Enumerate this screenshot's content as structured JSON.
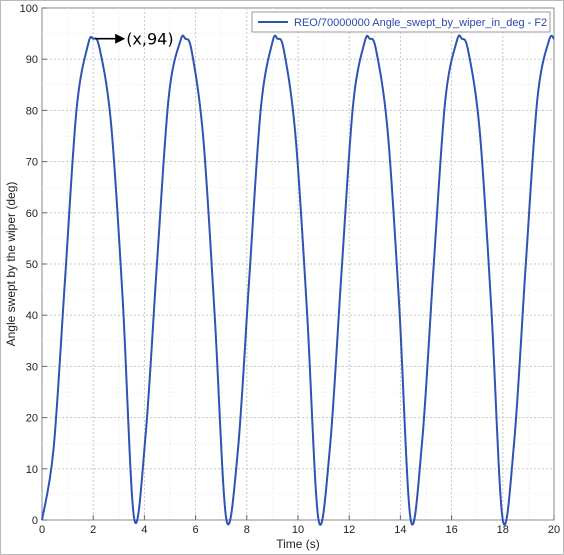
{
  "chart_data": {
    "type": "line",
    "title": "",
    "xlabel": "Time (s)",
    "ylabel": "Angle swept by the wiper (deg)",
    "xlim": [
      0,
      20
    ],
    "ylim": [
      0,
      100
    ],
    "xticks": [
      0,
      2,
      4,
      6,
      8,
      10,
      12,
      14,
      16,
      18,
      20
    ],
    "yticks": [
      0,
      10,
      20,
      30,
      40,
      50,
      60,
      70,
      80,
      90,
      100
    ],
    "grid": true,
    "legend_position": "top-right",
    "series": [
      {
        "name": "REO/70000000 Angle_swept_by_wiper_in_deg - F2",
        "color": "#2f52b5",
        "x": [
          0,
          0.45,
          0.9,
          1.35,
          1.8,
          2.0,
          2.25,
          2.7,
          3.15,
          3.6,
          4.05,
          4.5,
          4.95,
          5.4,
          5.6,
          5.85,
          6.3,
          6.75,
          7.2,
          7.65,
          8.1,
          8.55,
          9.0,
          9.2,
          9.45,
          9.9,
          10.35,
          10.8,
          11.25,
          11.7,
          12.15,
          12.6,
          12.8,
          13.05,
          13.5,
          13.95,
          14.4,
          14.85,
          15.3,
          15.75,
          16.2,
          16.4,
          16.65,
          17.1,
          17.55,
          18.0,
          18.45,
          18.9,
          19.35,
          19.8,
          20.0
        ],
        "y": [
          0,
          13.8,
          47.0,
          80.2,
          92.9,
          94,
          92.1,
          77.3,
          43.3,
          0.3,
          16.8,
          50.8,
          82.6,
          93.5,
          94,
          91.5,
          74.6,
          39.6,
          0.2,
          13.5,
          47.5,
          80.5,
          93.3,
          94,
          91.7,
          75.2,
          40.9,
          0.1,
          14.3,
          48.4,
          81.0,
          93.3,
          94,
          91.8,
          76.1,
          42.2,
          0.1,
          15.4,
          49.7,
          81.8,
          93.5,
          94,
          91.6,
          75.9,
          41.5,
          0.0,
          15.6,
          50.1,
          82.2,
          93.6,
          94
        ]
      }
    ],
    "annotations": [
      {
        "text": "(x,94)",
        "x": 2.0,
        "y": 94
      }
    ]
  }
}
